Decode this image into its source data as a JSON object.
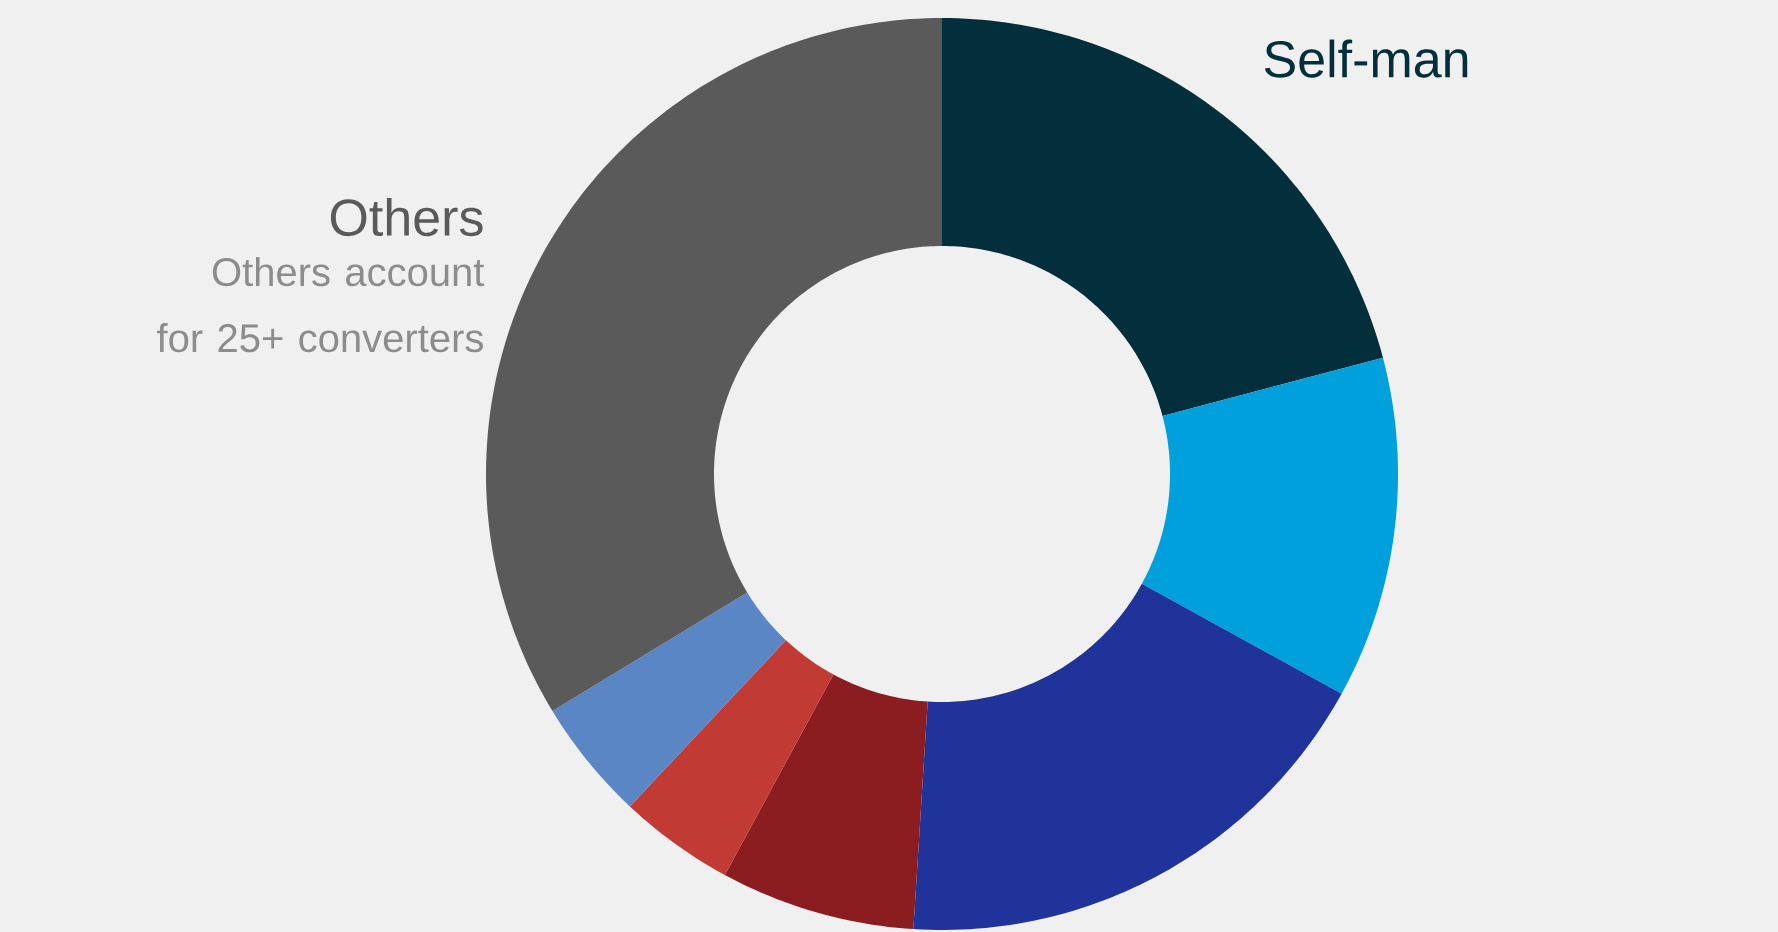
{
  "chart_data": {
    "type": "donut",
    "categories": [
      "Self-man",
      null,
      null,
      null,
      null,
      null,
      "Others"
    ],
    "values": [
      20.9,
      12.1,
      18.0,
      6.9,
      4.1,
      4.3,
      33.7
    ],
    "colors": [
      "#022f3b",
      "#00a0dc",
      "#1f339a",
      "#8b1c20",
      "#c13a33",
      "#5b86c5",
      "#5a5a5a"
    ],
    "annotations": [
      "Others account for 25+ converters"
    ]
  }
}
